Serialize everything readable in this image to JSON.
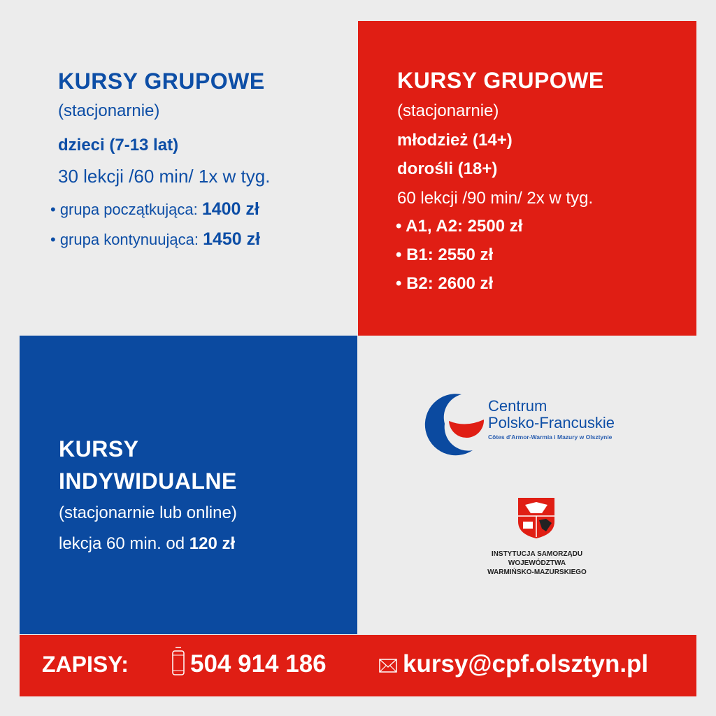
{
  "group_children": {
    "title": "KURSY GRUPOWE",
    "mode": "(stacjonarnie)",
    "audience": "dzieci (7-13 lat)",
    "schedule": "30 lekcji /60 min/ 1x w tyg.",
    "items": [
      {
        "label": "• grupa początkująca: ",
        "price": "1400 zł"
      },
      {
        "label": "• grupa kontynuująca: ",
        "price": "1450 zł"
      }
    ]
  },
  "group_adults": {
    "title": "KURSY GRUPOWE",
    "mode": "(stacjonarnie)",
    "audience_1": "młodzież (14+)",
    "audience_2": "dorośli (18+)",
    "schedule": "60 lekcji /90 min/ 2x w tyg.",
    "items": [
      "• A1, A2: 2500 zł",
      "• B1: 2550 zł",
      "• B2: 2600 zł"
    ]
  },
  "individual": {
    "title_1": "KURSY",
    "title_2": "INDYWIDUALNE",
    "mode": "(stacjonarnie lub online)",
    "price_prefix": "lekcja 60 min. od ",
    "price": "120 zł"
  },
  "logo_cpf": {
    "line1": "Centrum",
    "line2": "Polsko-Francuskie",
    "line3": "Côtes d'Armor-Warmia i Mazury w Olsztynie"
  },
  "institution": {
    "line1": "INSTYTUCJA SAMORZĄDU",
    "line2": "WOJEWÓDZTWA",
    "line3": "WARMIŃSKO-MAZURSKIEGO"
  },
  "contact": {
    "label": "ZAPISY:",
    "phone": "504 914 186",
    "email": "kursy@cpf.olsztyn.pl",
    "phone_icon": "phone-icon",
    "email_icon": "envelope-icon"
  },
  "colors": {
    "red": "#e01e14",
    "blue": "#0b4aa0",
    "background": "#ececec"
  }
}
